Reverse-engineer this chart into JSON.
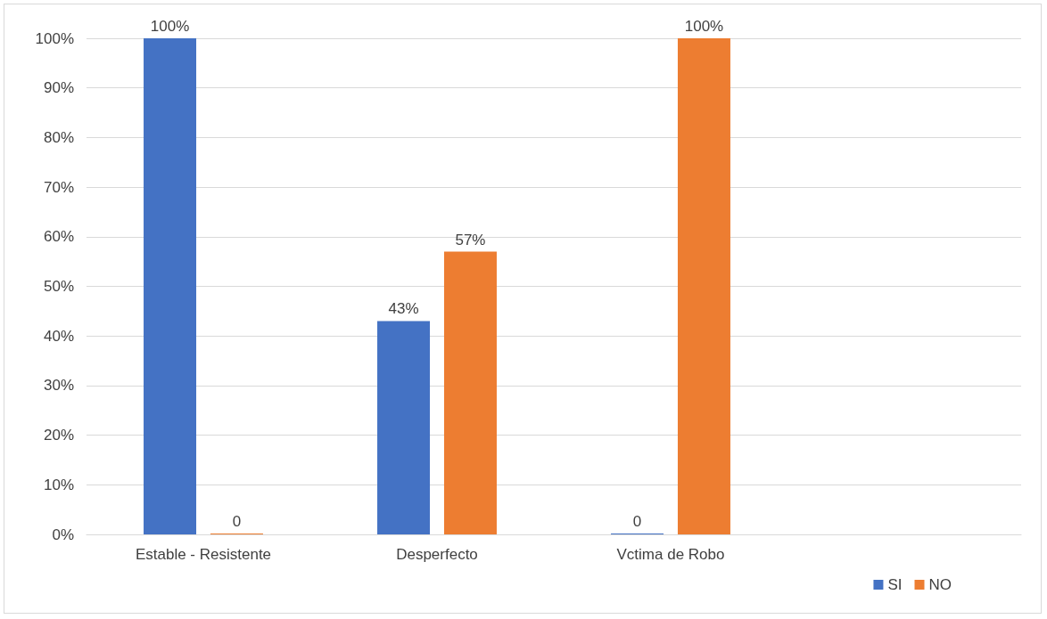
{
  "chart_data": {
    "type": "bar",
    "categories": [
      "Estable - Resistente",
      "Desperfecto",
      "Vctima de Robo",
      null
    ],
    "series": [
      {
        "name": "SI",
        "color": "#4472c4",
        "values": [
          100,
          43,
          0,
          null
        ],
        "value_labels": [
          "100%",
          "43%",
          "0",
          null
        ]
      },
      {
        "name": "NO",
        "color": "#ed7d31",
        "values": [
          0,
          57,
          100,
          null
        ],
        "value_labels": [
          "0",
          "57%",
          "100%",
          null
        ]
      }
    ],
    "ylim": [
      0,
      100
    ],
    "yticks": [
      {
        "value": 0,
        "label": "0%"
      },
      {
        "value": 10,
        "label": "10%"
      },
      {
        "value": 20,
        "label": "20%"
      },
      {
        "value": 30,
        "label": "30%"
      },
      {
        "value": 40,
        "label": "40%"
      },
      {
        "value": 50,
        "label": "50%"
      },
      {
        "value": 60,
        "label": "60%"
      },
      {
        "value": 70,
        "label": "70%"
      },
      {
        "value": 80,
        "label": "80%"
      },
      {
        "value": 90,
        "label": "90%"
      },
      {
        "value": 100,
        "label": "100%"
      }
    ],
    "grid": "y",
    "legend": "bottom right"
  }
}
